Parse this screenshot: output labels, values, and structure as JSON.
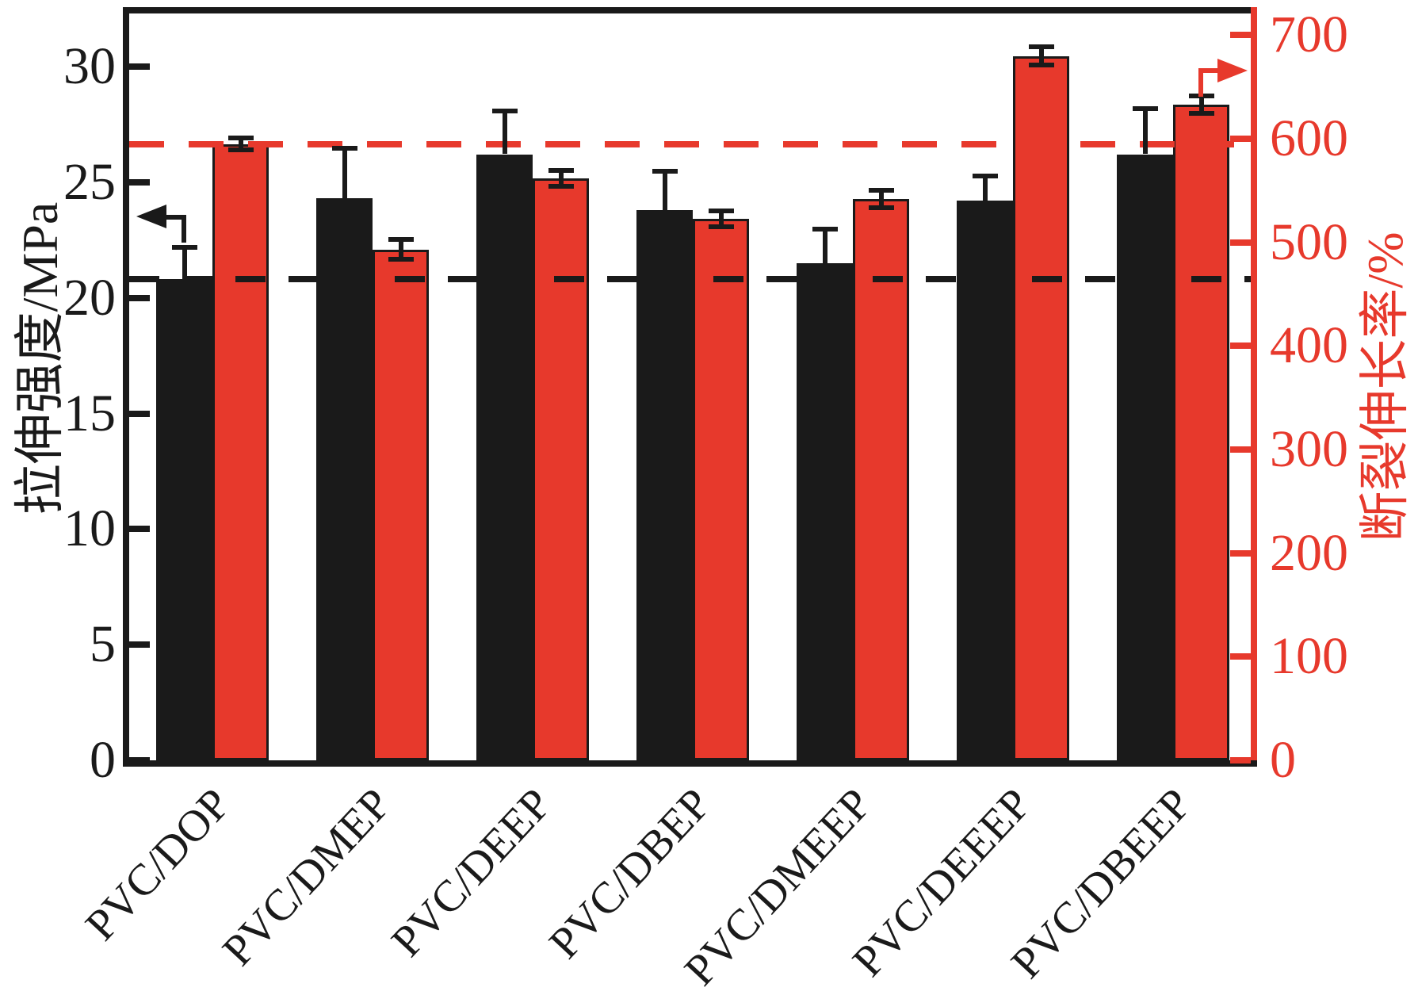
{
  "figure": {
    "left_axis": {
      "title": "拉伸强度/MPa",
      "color": "#1a1a1a",
      "ticks": [
        0,
        5,
        10,
        15,
        20,
        25,
        30
      ],
      "range": [
        0,
        32.3
      ]
    },
    "right_axis": {
      "title": "断裂伸长率/%",
      "color": "#e7392c",
      "ticks": [
        0,
        100,
        200,
        300,
        400,
        500,
        600,
        700
      ],
      "range": [
        0,
        721
      ]
    }
  },
  "chart_data": {
    "type": "bar",
    "categories": [
      "PVC/DOP",
      "PVC/DMEP",
      "PVC/DEEP",
      "PVC/DBEP",
      "PVC/DMEEP",
      "PVC/DEEEP",
      "PVC/DBEEP"
    ],
    "series": [
      {
        "name": "拉伸强度/MPa",
        "axis": "left",
        "color": "#1a1a1a",
        "values": [
          20.8,
          24.3,
          26.2,
          23.8,
          21.5,
          24.2,
          26.2
        ],
        "error_up": [
          1.3,
          2.1,
          1.8,
          1.6,
          1.4,
          1.0,
          1.9
        ]
      },
      {
        "name": "断裂伸长率/%",
        "axis": "right",
        "color": "#e7392c",
        "bar_border": "#1a1a1a",
        "values": [
          595,
          493,
          562,
          523,
          542,
          680,
          633
        ],
        "error": [
          4,
          8,
          6,
          6,
          7,
          7,
          7
        ]
      }
    ],
    "reference_lines": [
      {
        "series": "拉伸强度/MPa",
        "axis": "left",
        "value": 20.8,
        "style": "dashed",
        "color": "#1a1a1a"
      },
      {
        "series": "断裂伸长率/%",
        "axis": "right",
        "value": 595,
        "style": "dashed",
        "color": "#e7392c"
      }
    ],
    "axis_arrows": [
      {
        "points_to": "left-axis",
        "color": "#1a1a1a"
      },
      {
        "points_to": "right-axis",
        "color": "#e7392c"
      }
    ],
    "title": "",
    "xlabel": "",
    "ylabel": "拉伸强度/MPa",
    "ylabel_right": "断裂伸长率/%",
    "ylim_left": [
      0,
      32.3
    ],
    "ylim_right": [
      0,
      721
    ],
    "grid": false,
    "legend": "none"
  }
}
